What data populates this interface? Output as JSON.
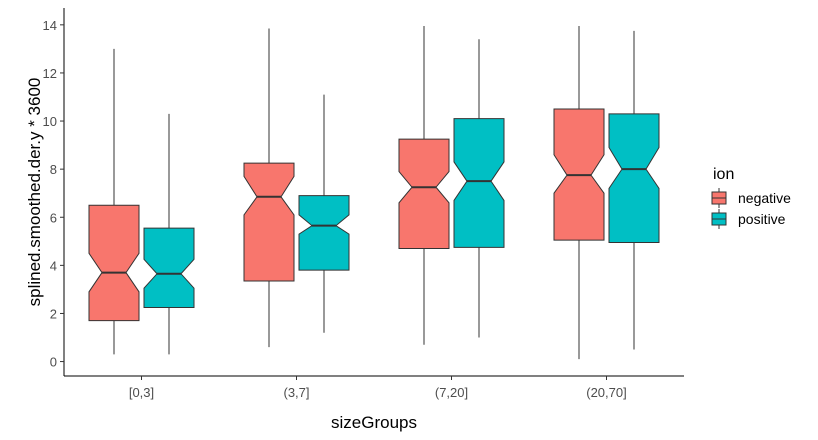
{
  "chart_data": {
    "type": "boxplot",
    "notched": true,
    "xlabel": "sizeGroups",
    "ylabel": "splined.smoothed.der.y * 3600",
    "categories": [
      "[0,3]",
      "(3,7]",
      "(7,20]",
      "(20,70]"
    ],
    "ylim": [
      -0.6,
      14.7
    ],
    "yticks": [
      0,
      2,
      4,
      6,
      8,
      10,
      12,
      14
    ],
    "grid": false,
    "legend": {
      "title": "ion",
      "position": "right",
      "entries": [
        {
          "label": "negative",
          "color": "#F8766D"
        },
        {
          "label": "positive",
          "color": "#00BFC4"
        }
      ]
    },
    "series": [
      {
        "name": "negative",
        "color": "#F8766D",
        "boxes": [
          {
            "min": 0.3,
            "q1": 1.7,
            "median": 3.7,
            "q3": 6.5,
            "max": 13.0,
            "notch_low": 2.9,
            "notch_high": 4.5
          },
          {
            "min": 0.6,
            "q1": 3.35,
            "median": 6.85,
            "q3": 8.25,
            "max": 13.85,
            "notch_low": 6.1,
            "notch_high": 7.7
          },
          {
            "min": 0.7,
            "q1": 4.7,
            "median": 7.25,
            "q3": 9.25,
            "max": 13.95,
            "notch_low": 6.6,
            "notch_high": 7.9
          },
          {
            "min": 0.1,
            "q1": 5.05,
            "median": 7.75,
            "q3": 10.5,
            "max": 13.95,
            "notch_low": 7.0,
            "notch_high": 8.6
          }
        ]
      },
      {
        "name": "positive",
        "color": "#00BFC4",
        "boxes": [
          {
            "min": 0.3,
            "q1": 2.25,
            "median": 3.65,
            "q3": 5.55,
            "max": 10.3,
            "notch_low": 3.05,
            "notch_high": 4.25
          },
          {
            "min": 1.2,
            "q1": 3.8,
            "median": 5.65,
            "q3": 6.9,
            "max": 11.1,
            "notch_low": 5.3,
            "notch_high": 6.1
          },
          {
            "min": 1.0,
            "q1": 4.75,
            "median": 7.5,
            "q3": 10.1,
            "max": 13.4,
            "notch_low": 6.7,
            "notch_high": 8.3
          },
          {
            "min": 0.5,
            "q1": 4.95,
            "median": 8.0,
            "q3": 10.3,
            "max": 13.75,
            "notch_low": 7.2,
            "notch_high": 8.9
          }
        ]
      }
    ]
  }
}
